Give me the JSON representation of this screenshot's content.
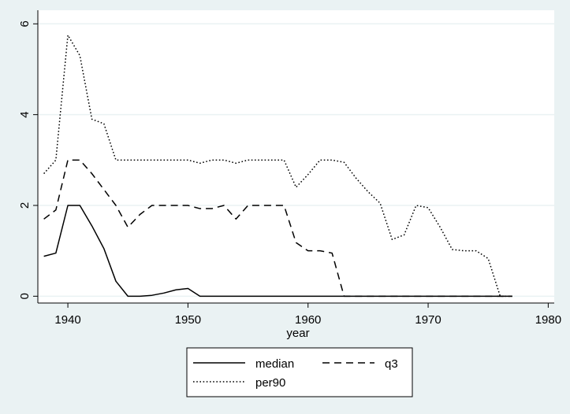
{
  "chart_data": {
    "type": "line",
    "title": "",
    "xlabel": "year",
    "ylabel": "",
    "xlim": [
      1937.5,
      1980.5
    ],
    "ylim": [
      -0.15,
      6.3
    ],
    "x_ticks": [
      1940,
      1950,
      1960,
      1970,
      1980
    ],
    "y_ticks": [
      0,
      2,
      4,
      6
    ],
    "grid": "horizontal",
    "legend_position": "bottom",
    "colors": {
      "background": "#eaf2f3",
      "plot_area": "#ffffff",
      "line": "#000000",
      "grid": "#eaf2f3"
    },
    "series": [
      {
        "name": "median",
        "dash": "solid",
        "x": [
          1938,
          1939,
          1940,
          1941,
          1942,
          1943,
          1944,
          1945,
          1946,
          1947,
          1948,
          1949,
          1950,
          1951,
          1952,
          1953,
          1954,
          1955,
          1956,
          1957,
          1958,
          1959,
          1960,
          1961,
          1962,
          1963,
          1964,
          1965,
          1966,
          1967,
          1968,
          1969,
          1970,
          1971,
          1972,
          1973,
          1974,
          1975,
          1976,
          1977
        ],
        "values": [
          0.88,
          0.95,
          2.0,
          2.0,
          1.55,
          1.05,
          0.33,
          0,
          0,
          0.02,
          0.07,
          0.14,
          0.17,
          0,
          0,
          0,
          0,
          0,
          0,
          0,
          0,
          0,
          0,
          0,
          0,
          0,
          0,
          0,
          0,
          0,
          0,
          0,
          0,
          0,
          0,
          0,
          0,
          0,
          0,
          0
        ]
      },
      {
        "name": "q3",
        "dash": "dash",
        "x": [
          1938,
          1939,
          1940,
          1941,
          1942,
          1943,
          1944,
          1945,
          1946,
          1947,
          1948,
          1949,
          1950,
          1951,
          1952,
          1953,
          1954,
          1955,
          1956,
          1957,
          1958,
          1959,
          1960,
          1961,
          1962,
          1963,
          1964,
          1965,
          1966,
          1967,
          1968,
          1969,
          1970,
          1971,
          1972,
          1973,
          1974,
          1975,
          1976,
          1977
        ],
        "values": [
          1.7,
          1.9,
          3.0,
          3.0,
          2.7,
          2.35,
          2.0,
          1.52,
          1.8,
          2.0,
          2.0,
          2.0,
          2.0,
          1.93,
          1.93,
          2.0,
          1.7,
          2.0,
          2.0,
          2.0,
          2.0,
          1.18,
          1.0,
          1.0,
          0.95,
          0,
          0,
          0,
          0,
          0,
          0,
          0,
          0,
          0,
          0,
          0,
          0,
          0,
          0,
          0
        ]
      },
      {
        "name": "per90",
        "dash": "dot",
        "x": [
          1938,
          1939,
          1940,
          1941,
          1942,
          1943,
          1944,
          1945,
          1946,
          1947,
          1948,
          1949,
          1950,
          1951,
          1952,
          1953,
          1954,
          1955,
          1956,
          1957,
          1958,
          1959,
          1960,
          1961,
          1962,
          1963,
          1964,
          1965,
          1966,
          1967,
          1968,
          1969,
          1970,
          1971,
          1972,
          1973,
          1974,
          1975,
          1976,
          1977
        ],
        "values": [
          2.7,
          3.0,
          5.75,
          5.3,
          3.9,
          3.8,
          3.0,
          3.0,
          3.0,
          3.0,
          3.0,
          3.0,
          3.0,
          2.93,
          3.0,
          3.0,
          2.93,
          3.0,
          3.0,
          3.0,
          3.0,
          2.4,
          2.68,
          3.0,
          3.0,
          2.95,
          2.6,
          2.3,
          2.05,
          1.25,
          1.35,
          2.0,
          1.95,
          1.52,
          1.03,
          1.0,
          1.0,
          0.83,
          0,
          0
        ]
      }
    ]
  }
}
